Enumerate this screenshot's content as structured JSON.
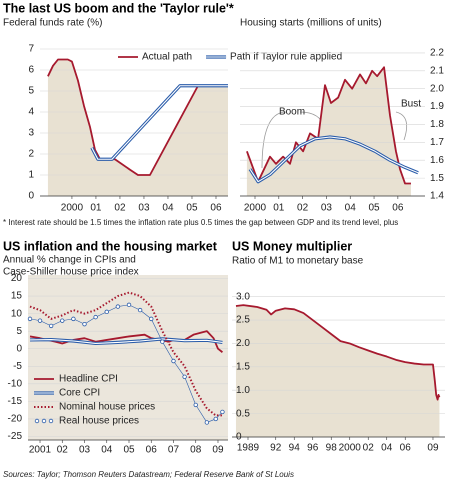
{
  "title": "The last US boom and the 'Taylor rule'*",
  "footnote": "* Interest rate should be 1.5 times the inflation rate plus 0.5 times the gap between GDP and its trend level, plus",
  "source": "Sources: Taylor; Thomson Reuters Datastream; Federal Reserve Bank of St Louis",
  "chart_data": [
    {
      "type": "line",
      "subtitle": "Federal funds rate (%)",
      "legend": "top",
      "grid": true,
      "y_axis": "left",
      "xlim": [
        1998.67,
        2006.5
      ],
      "ylim": [
        0,
        7
      ],
      "xticks": [
        2000,
        {
          "value": 2001,
          "label": "01"
        },
        {
          "value": 2002,
          "label": "02"
        },
        {
          "value": 2003,
          "label": "03"
        },
        {
          "value": 2004,
          "label": "04"
        },
        {
          "value": 2005,
          "label": "05"
        },
        {
          "value": 2006,
          "label": "06"
        }
      ],
      "yticks": [
        0,
        1,
        2,
        3,
        4,
        5,
        6,
        7
      ],
      "series": [
        {
          "name": "Actual path",
          "color": "#a6192e",
          "area_color": "#e8e1d2",
          "x": [
            1999.0,
            1999.21,
            1999.42,
            1999.83,
            2000.0,
            2000.25,
            2000.5,
            2000.75,
            2000.96,
            2001.17,
            2001.79,
            2002.42,
            2002.75,
            2003.25,
            2005.25,
            2006.5
          ],
          "values": [
            5.7,
            6.2,
            6.5,
            6.5,
            6.4,
            5.5,
            4.3,
            3.3,
            2.2,
            1.75,
            1.75,
            1.25,
            1.0,
            1.0,
            5.25,
            5.25
          ]
        },
        {
          "name": "Path if Taylor rule applied",
          "color": "#2a5caa",
          "style": "double",
          "x": [
            2000.83,
            2001.08,
            2001.67,
            2004.5,
            2006.5
          ],
          "values": [
            2.3,
            1.75,
            1.75,
            5.25,
            5.25
          ]
        }
      ]
    },
    {
      "type": "line",
      "subtitle": "Housing starts (millions of units)",
      "annotations": [
        "Boom",
        "Bust"
      ],
      "grid": true,
      "y_axis": "right",
      "xlim": [
        1999.37,
        2007.14
      ],
      "ylim": [
        1.4,
        2.25
      ],
      "xticks": [
        2000,
        {
          "value": 2001,
          "label": "01"
        },
        {
          "value": 2002,
          "label": "02"
        },
        {
          "value": 2003,
          "label": "03"
        },
        {
          "value": 2004,
          "label": "04"
        },
        {
          "value": 2005,
          "label": "05"
        },
        {
          "value": 2006,
          "label": "06"
        }
      ],
      "yticks": [
        1.4,
        1.5,
        1.6,
        1.7,
        1.8,
        1.9,
        {
          "value": 2,
          "label": "2.0"
        },
        2.1,
        2.2
      ],
      "series": [
        {
          "color": "#a6192e",
          "area_color": "#e8e1d2",
          "x": [
            1999.66,
            2000.13,
            2000.38,
            2000.63,
            2000.88,
            2001.18,
            2001.47,
            2001.72,
            2002.02,
            2002.31,
            2002.65,
            2002.94,
            2003.19,
            2003.49,
            2003.78,
            2004.08,
            2004.41,
            2004.66,
            2004.92,
            2005.13,
            2005.42,
            2005.67,
            2005.92,
            2006.09,
            2006.3,
            2006.55
          ],
          "values": [
            1.65,
            1.48,
            1.55,
            1.62,
            1.58,
            1.62,
            1.58,
            1.7,
            1.65,
            1.75,
            1.72,
            2.02,
            1.92,
            1.95,
            2.05,
            2.0,
            2.08,
            2.03,
            2.1,
            2.07,
            2.12,
            1.85,
            1.65,
            1.55,
            1.47,
            1.47
          ]
        },
        {
          "color": "#2a5caa",
          "style": "double",
          "x": [
            1999.79,
            2000.13,
            2000.63,
            2001.26,
            2001.89,
            2002.52,
            2003.15,
            2003.78,
            2004.41,
            2005.04,
            2005.67,
            2006.3,
            2006.85
          ],
          "values": [
            1.55,
            1.48,
            1.52,
            1.6,
            1.68,
            1.72,
            1.73,
            1.72,
            1.69,
            1.65,
            1.6,
            1.56,
            1.53
          ]
        }
      ]
    },
    {
      "type": "line",
      "title": "US inflation and the housing market",
      "subtitle": [
        "Annual % change in CPIs and",
        "Case-Shiller house price index"
      ],
      "plot_background": "#ebe6dc",
      "legend": "lower left",
      "grid": true,
      "y_axis": "left",
      "xlim": [
        2000.46,
        2009.45
      ],
      "ylim": [
        -26,
        21
      ],
      "xticks": [
        2001,
        {
          "value": 2002,
          "label": "02"
        },
        {
          "value": 2003,
          "label": "03"
        },
        {
          "value": 2004,
          "label": "04"
        },
        {
          "value": 2005,
          "label": "05"
        },
        {
          "value": 2006,
          "label": "06"
        },
        {
          "value": 2007,
          "label": "07"
        },
        {
          "value": 2008,
          "label": "08"
        },
        {
          "value": 2009,
          "label": "09"
        }
      ],
      "yticks": [
        20,
        15,
        10,
        5,
        0,
        -5,
        -10,
        -15,
        -20,
        -25
      ],
      "series": [
        {
          "name": "Headline CPI",
          "color": "#a6192e",
          "x": [
            2000.55,
            2001,
            2001.7,
            2002,
            2002.5,
            2003,
            2003.5,
            2004,
            2004.5,
            2005,
            2005.7,
            2006,
            2006.8,
            2007,
            2007.5,
            2007.9,
            2008.5,
            2008.8,
            2009.0,
            2009.2
          ],
          "values": [
            3.5,
            3,
            2,
            1.5,
            2.5,
            3,
            2,
            2.5,
            3,
            3.5,
            4,
            3,
            2,
            2.5,
            2.5,
            4,
            5,
            3,
            0,
            -1
          ]
        },
        {
          "name": "Core CPI",
          "color": "#2a5caa",
          "style": "double",
          "x": [
            2000.55,
            2001.5,
            2002.5,
            2003.5,
            2004.5,
            2005.5,
            2006.5,
            2007.5,
            2008.5,
            2009.2
          ],
          "values": [
            2.5,
            2.6,
            2.2,
            1.5,
            1.8,
            2.2,
            2.8,
            2.3,
            2.4,
            1.8
          ]
        },
        {
          "name": "Nominal house prices",
          "color": "#a6192e",
          "style": "dotted",
          "x": [
            2000.55,
            2001,
            2001.5,
            2002,
            2002.5,
            2003,
            2003.5,
            2004,
            2004.5,
            2005,
            2005.5,
            2006,
            2006.5,
            2007,
            2007.5,
            2008,
            2008.5,
            2008.9,
            2009.2
          ],
          "values": [
            12,
            11,
            8.5,
            9.5,
            11,
            10,
            11,
            13,
            15,
            16,
            15,
            12,
            5,
            -1,
            -5,
            -12,
            -17,
            -19,
            -19
          ]
        },
        {
          "name": "Real house prices",
          "color": "#2a5caa",
          "style": "circles",
          "x": [
            2000.55,
            2001,
            2001.5,
            2002,
            2002.5,
            2003,
            2003.5,
            2004,
            2004.5,
            2005,
            2005.5,
            2006,
            2006.5,
            2007,
            2007.5,
            2008,
            2008.5,
            2008.9,
            2009.2
          ],
          "values": [
            8.5,
            8,
            6.5,
            8,
            8.5,
            7,
            9,
            10.5,
            12,
            12.5,
            11,
            8.5,
            2,
            -3.5,
            -8,
            -16,
            -21,
            -20,
            -18
          ]
        }
      ]
    },
    {
      "type": "line",
      "title": "US Money multiplier",
      "subtitle": "Ratio of M1 to monetary base",
      "grid": true,
      "y_axis": "inside",
      "xlim": [
        1987.27,
        2010.3
      ],
      "ylim": [
        0,
        3.1
      ],
      "xticks": [
        1989,
        {
          "value": 1992,
          "label": "92"
        },
        {
          "value": 1994,
          "label": "94"
        },
        {
          "value": 1996,
          "label": "96"
        },
        {
          "value": 1998,
          "label": "98"
        },
        2000,
        {
          "value": 2002,
          "label": "02"
        },
        {
          "value": 2004,
          "label": "04"
        },
        {
          "value": 2006,
          "label": "06"
        },
        {
          "value": 2009,
          "label": "09"
        }
      ],
      "yticks": [
        0,
        0.5,
        {
          "value": 1,
          "label": "1.0"
        },
        1.5,
        {
          "value": 2,
          "label": "2.0"
        },
        2.5,
        {
          "value": 3,
          "label": "3.0"
        }
      ],
      "series": [
        {
          "color": "#a6192e",
          "area_color": "#e8e1d2",
          "x": [
            1987.7,
            1988.5,
            1990,
            1991,
            1991.5,
            1992,
            1993,
            1994,
            1995,
            1996,
            1997,
            1998,
            1999,
            2000,
            2001,
            2002,
            2003,
            2004,
            2005,
            2006,
            2007,
            2008,
            2009.0,
            2009.2,
            2009.35,
            2009.5,
            2009.6,
            2009.7
          ],
          "values": [
            2.8,
            2.82,
            2.78,
            2.72,
            2.62,
            2.7,
            2.75,
            2.73,
            2.65,
            2.5,
            2.35,
            2.2,
            2.05,
            2.0,
            1.92,
            1.85,
            1.78,
            1.72,
            1.65,
            1.6,
            1.57,
            1.55,
            1.55,
            1.2,
            0.9,
            0.8,
            0.9,
            0.85
          ]
        }
      ]
    }
  ]
}
